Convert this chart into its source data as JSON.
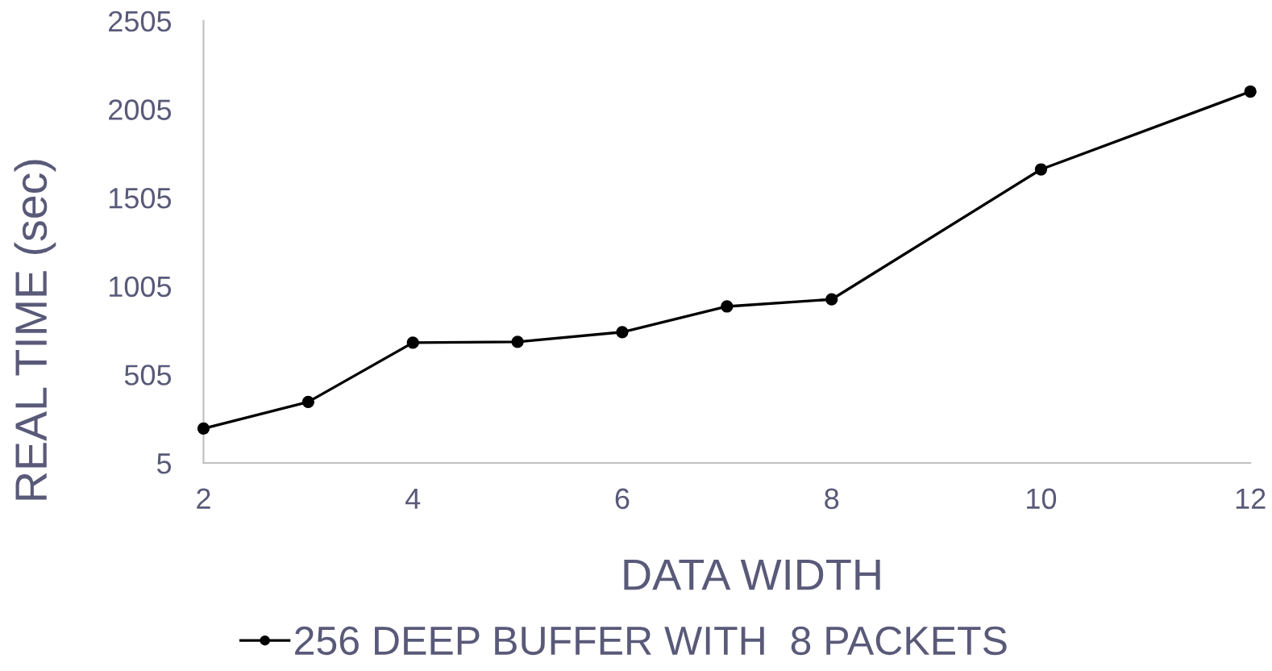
{
  "chart_data": {
    "type": "line",
    "xlabel": "DATA WIDTH",
    "ylabel": "REAL TIME (sec)",
    "x": [
      2,
      3,
      4,
      5,
      6,
      7,
      8,
      10,
      12
    ],
    "series": [
      {
        "name": "256 DEEP BUFFER WITH  8 PACKETS",
        "color": "#000000",
        "values": [
          200,
          350,
          685,
          690,
          745,
          890,
          930,
          1665,
          2105
        ]
      }
    ],
    "xlim": [
      2,
      12
    ],
    "xticks": [
      2,
      4,
      6,
      8,
      10,
      12
    ],
    "ylim": [
      5,
      2505
    ],
    "yticks": [
      5,
      505,
      1005,
      1505,
      2005,
      2505
    ],
    "grid": false,
    "legend": "bottom",
    "marker": "circle",
    "line_style": "solid"
  }
}
